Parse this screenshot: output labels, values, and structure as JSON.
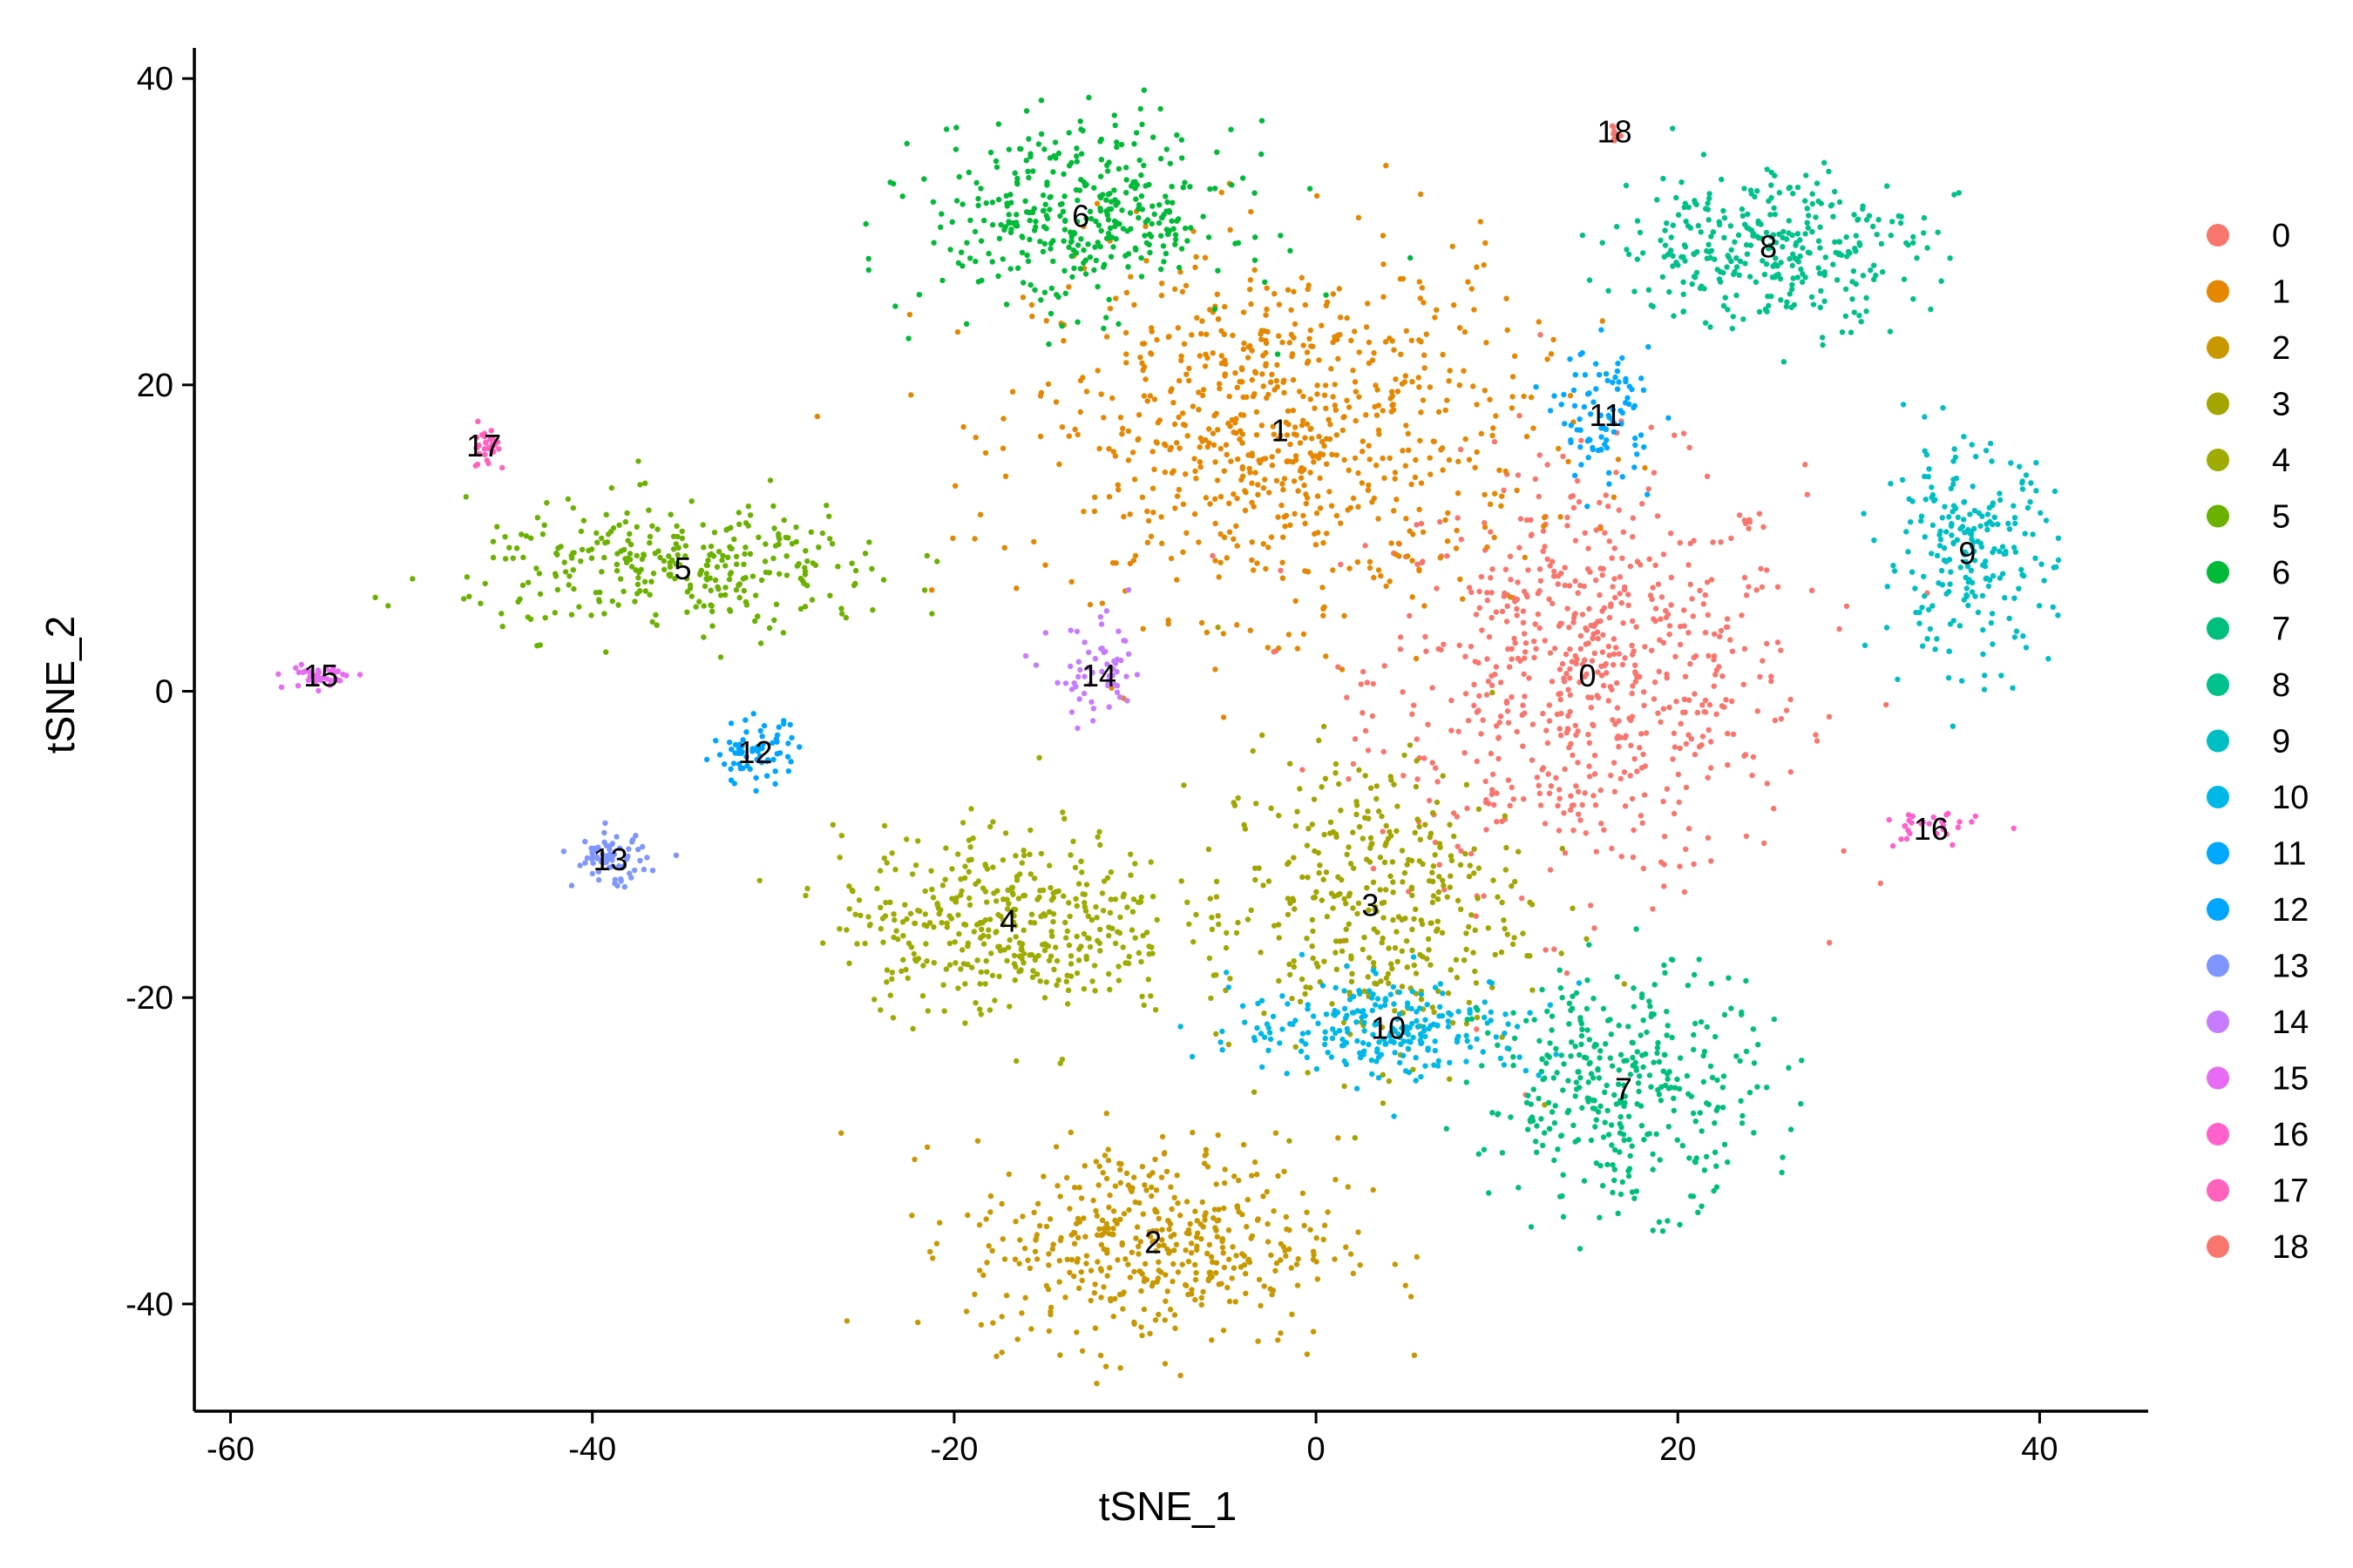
{
  "chart_data": {
    "type": "scatter",
    "title": "",
    "xlabel": "tSNE_1",
    "ylabel": "tSNE_2",
    "xlim": [
      -62,
      46
    ],
    "ylim": [
      -47,
      42
    ],
    "x_ticks": [
      -60,
      -40,
      -20,
      0,
      20,
      40
    ],
    "y_ticks": [
      -40,
      -20,
      0,
      20,
      40
    ],
    "x_tick_labels": [
      "-60",
      "-40",
      "-20",
      "0",
      "20",
      "40"
    ],
    "y_tick_labels": [
      "-40",
      "-20",
      "0",
      "20",
      "40"
    ],
    "grid": false,
    "legend_position": "right",
    "clusters": [
      {
        "name": "0",
        "color": "#F8766D",
        "label_x": 15,
        "label_y": 1,
        "sx": 7,
        "sy": 8,
        "n": 700
      },
      {
        "name": "1",
        "color": "#E58700",
        "label_x": -2,
        "label_y": 17,
        "sx": 8,
        "sy": 7,
        "n": 750
      },
      {
        "name": "2",
        "color": "#C99800",
        "label_x": -9,
        "label_y": -36,
        "sx": 6,
        "sy": 4,
        "n": 450
      },
      {
        "name": "3",
        "color": "#A3A500",
        "label_x": 3,
        "label_y": -14,
        "sx": 5,
        "sy": 6,
        "n": 380
      },
      {
        "name": "4",
        "color": "#9EAB00",
        "label_x": -17,
        "label_y": -15,
        "sx": 5.5,
        "sy": 3.5,
        "n": 420
      },
      {
        "name": "5",
        "color": "#6BB100",
        "label_x": -35,
        "label_y": 8,
        "sx": 7,
        "sy": 2.5,
        "n": 320
      },
      {
        "name": "6",
        "color": "#00BA38",
        "label_x": -13,
        "label_y": 31,
        "sx": 5,
        "sy": 3.5,
        "n": 380
      },
      {
        "name": "7",
        "color": "#00BF7D",
        "label_x": 17,
        "label_y": -26,
        "sx": 4.5,
        "sy": 4.5,
        "n": 360
      },
      {
        "name": "8",
        "color": "#00C08B",
        "label_x": 25,
        "label_y": 29,
        "sx": 5,
        "sy": 3,
        "n": 330
      },
      {
        "name": "9",
        "color": "#00BFC4",
        "label_x": 36,
        "label_y": 9,
        "sx": 2.8,
        "sy": 4,
        "n": 230
      },
      {
        "name": "10",
        "color": "#00B8E7",
        "label_x": 4,
        "label_y": -22,
        "sx": 5,
        "sy": 2,
        "n": 240
      },
      {
        "name": "11",
        "color": "#00A9FF",
        "label_x": 16,
        "label_y": 18,
        "sx": 1.5,
        "sy": 2.5,
        "n": 90
      },
      {
        "name": "12",
        "color": "#00A5FF",
        "label_x": -31,
        "label_y": -4,
        "sx": 1.4,
        "sy": 1.2,
        "n": 70
      },
      {
        "name": "13",
        "color": "#7F96FF",
        "label_x": -39,
        "label_y": -11,
        "sx": 1.2,
        "sy": 1.0,
        "n": 70
      },
      {
        "name": "14",
        "color": "#C77CFF",
        "label_x": -12,
        "label_y": 1,
        "sx": 1.6,
        "sy": 2.0,
        "n": 60
      },
      {
        "name": "15",
        "color": "#E76BF3",
        "label_x": -55,
        "label_y": 1,
        "sx": 1.2,
        "sy": 0.5,
        "n": 40
      },
      {
        "name": "16",
        "color": "#FF61CC",
        "label_x": 34,
        "label_y": -9,
        "sx": 1.5,
        "sy": 0.7,
        "n": 30
      },
      {
        "name": "17",
        "color": "#FF62BC",
        "label_x": -46,
        "label_y": 16,
        "sx": 0.5,
        "sy": 0.8,
        "n": 30
      },
      {
        "name": "18",
        "color": "#F8766D",
        "label_x": 16.5,
        "label_y": 36.5,
        "sx": 0.2,
        "sy": 0.4,
        "n": 8
      }
    ]
  }
}
